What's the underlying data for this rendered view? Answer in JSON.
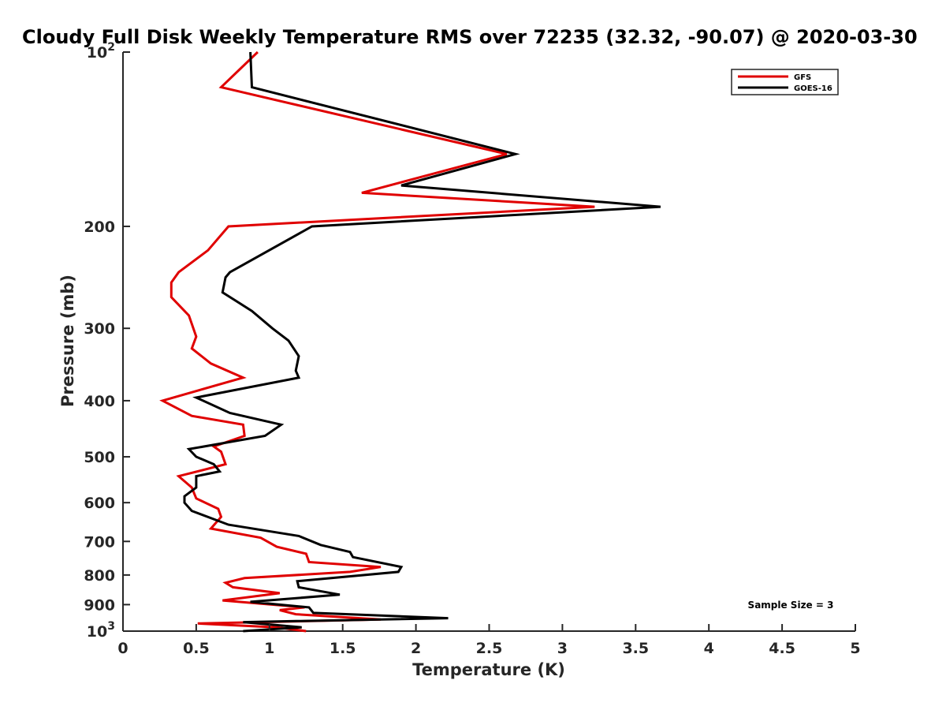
{
  "chart_data": {
    "type": "line",
    "title": "Cloudy Full Disk Weekly Temperature RMS over 72235 (32.32, -90.07) @ 2020-03-30",
    "xlabel": "Temperature (K)",
    "ylabel": "Pressure (mb)",
    "xlim": [
      0,
      5
    ],
    "ylim": [
      100,
      1000
    ],
    "y_scale": "log",
    "y_reversed": true,
    "grid": false,
    "legend_position": "top-right",
    "x_ticks": [
      {
        "value": 0,
        "label": "0"
      },
      {
        "value": 0.5,
        "label": "0.5"
      },
      {
        "value": 1,
        "label": "1"
      },
      {
        "value": 1.5,
        "label": "1.5"
      },
      {
        "value": 2,
        "label": "2"
      },
      {
        "value": 2.5,
        "label": "2.5"
      },
      {
        "value": 3,
        "label": "3"
      },
      {
        "value": 3.5,
        "label": "3.5"
      },
      {
        "value": 4,
        "label": "4"
      },
      {
        "value": 4.5,
        "label": "4.5"
      },
      {
        "value": 5,
        "label": "5"
      }
    ],
    "y_ticks": [
      {
        "value": 100,
        "label": "10",
        "sup": "2"
      },
      {
        "value": 200,
        "label": "200"
      },
      {
        "value": 300,
        "label": "300"
      },
      {
        "value": 400,
        "label": "400"
      },
      {
        "value": 500,
        "label": "500"
      },
      {
        "value": 600,
        "label": "600"
      },
      {
        "value": 700,
        "label": "700"
      },
      {
        "value": 800,
        "label": "800"
      },
      {
        "value": 900,
        "label": "900"
      },
      {
        "value": 1000,
        "label": "10",
        "sup": "3"
      }
    ],
    "annotation": "Sample Size = 3",
    "series": [
      {
        "name": "GFS",
        "color": "#e00000",
        "points": [
          [
            0.92,
            100
          ],
          [
            0.67,
            115
          ],
          [
            2.62,
            150
          ],
          [
            1.63,
            175
          ],
          [
            3.22,
            185
          ],
          [
            0.72,
            200
          ],
          [
            0.58,
            220
          ],
          [
            0.38,
            240
          ],
          [
            0.33,
            250
          ],
          [
            0.33,
            265
          ],
          [
            0.45,
            285
          ],
          [
            0.5,
            310
          ],
          [
            0.47,
            325
          ],
          [
            0.6,
            345
          ],
          [
            0.82,
            365
          ],
          [
            0.27,
            400
          ],
          [
            0.47,
            425
          ],
          [
            0.82,
            440
          ],
          [
            0.83,
            460
          ],
          [
            0.62,
            480
          ],
          [
            0.67,
            490
          ],
          [
            0.7,
            515
          ],
          [
            0.38,
            540
          ],
          [
            0.47,
            565
          ],
          [
            0.5,
            590
          ],
          [
            0.65,
            615
          ],
          [
            0.67,
            635
          ],
          [
            0.6,
            665
          ],
          [
            0.94,
            690
          ],
          [
            1.05,
            715
          ],
          [
            1.25,
            735
          ],
          [
            1.27,
            760
          ],
          [
            1.76,
            775
          ],
          [
            1.55,
            790
          ],
          [
            0.83,
            810
          ],
          [
            0.7,
            825
          ],
          [
            0.75,
            840
          ],
          [
            1.07,
            860
          ],
          [
            0.68,
            885
          ],
          [
            1.24,
            910
          ],
          [
            1.07,
            920
          ],
          [
            1.18,
            935
          ],
          [
            1.76,
            955
          ],
          [
            0.51,
            970
          ],
          [
            1.05,
            985
          ],
          [
            1.25,
            1000
          ]
        ]
      },
      {
        "name": "GOES-16",
        "color": "#000000",
        "points": [
          [
            0.87,
            100
          ],
          [
            0.88,
            115
          ],
          [
            2.68,
            150
          ],
          [
            1.9,
            170
          ],
          [
            3.67,
            185
          ],
          [
            1.29,
            200
          ],
          [
            0.73,
            240
          ],
          [
            0.7,
            245
          ],
          [
            0.68,
            260
          ],
          [
            0.88,
            280
          ],
          [
            1.02,
            300
          ],
          [
            1.13,
            315
          ],
          [
            1.2,
            335
          ],
          [
            1.18,
            355
          ],
          [
            1.2,
            365
          ],
          [
            0.5,
            395
          ],
          [
            0.73,
            420
          ],
          [
            1.08,
            440
          ],
          [
            0.97,
            460
          ],
          [
            0.45,
            485
          ],
          [
            0.5,
            500
          ],
          [
            0.62,
            515
          ],
          [
            0.66,
            530
          ],
          [
            0.5,
            540
          ],
          [
            0.5,
            565
          ],
          [
            0.42,
            585
          ],
          [
            0.42,
            600
          ],
          [
            0.47,
            620
          ],
          [
            0.72,
            655
          ],
          [
            1.2,
            685
          ],
          [
            1.35,
            710
          ],
          [
            1.55,
            730
          ],
          [
            1.57,
            745
          ],
          [
            1.9,
            775
          ],
          [
            1.88,
            790
          ],
          [
            1.19,
            820
          ],
          [
            1.2,
            840
          ],
          [
            1.48,
            865
          ],
          [
            0.87,
            890
          ],
          [
            1.27,
            910
          ],
          [
            1.3,
            930
          ],
          [
            2.22,
            950
          ],
          [
            0.82,
            965
          ],
          [
            1.22,
            985
          ],
          [
            0.82,
            1000
          ]
        ]
      }
    ]
  }
}
